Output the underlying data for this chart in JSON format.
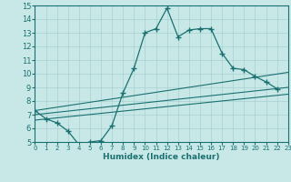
{
  "xlabel": "Humidex (Indice chaleur)",
  "xlim": [
    0,
    23
  ],
  "ylim": [
    5,
    15
  ],
  "xticks": [
    0,
    1,
    2,
    3,
    4,
    5,
    6,
    7,
    8,
    9,
    10,
    11,
    12,
    13,
    14,
    15,
    16,
    17,
    18,
    19,
    20,
    21,
    22,
    23
  ],
  "yticks": [
    5,
    6,
    7,
    8,
    9,
    10,
    11,
    12,
    13,
    14,
    15
  ],
  "bg_color": "#c8e8e8",
  "line_color": "#1a7070",
  "grid_color": "#a8d0d0",
  "curve_x": [
    0,
    1,
    2,
    3,
    4,
    5,
    6,
    7,
    8,
    9,
    10,
    11,
    12,
    13,
    14,
    15,
    16,
    17,
    18,
    19,
    20,
    21,
    22
  ],
  "curve_y": [
    7.3,
    6.7,
    6.4,
    5.8,
    4.8,
    5.0,
    5.1,
    6.2,
    8.6,
    10.4,
    13.0,
    13.3,
    14.8,
    12.7,
    13.2,
    13.3,
    13.3,
    11.5,
    10.4,
    10.3,
    9.8,
    9.4,
    8.9
  ],
  "trend1_x": [
    0,
    23
  ],
  "trend1_y": [
    6.6,
    8.5
  ],
  "trend2_x": [
    0,
    23
  ],
  "trend2_y": [
    7.0,
    9.0
  ],
  "trend3_x": [
    0,
    23
  ],
  "trend3_y": [
    7.3,
    10.1
  ]
}
